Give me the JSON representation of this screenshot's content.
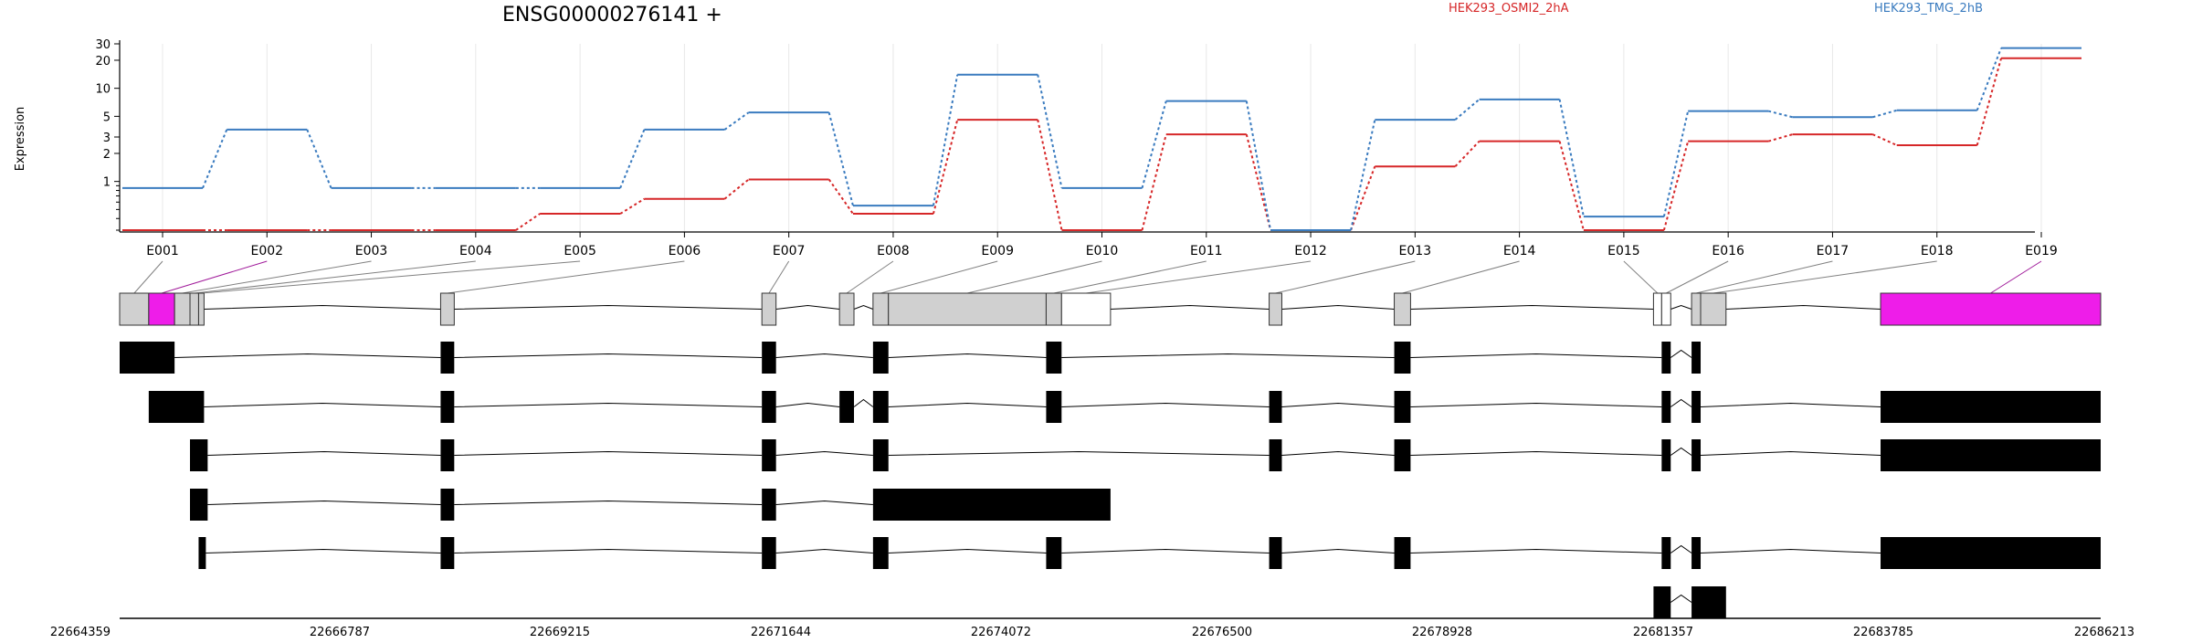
{
  "chart_data": [
    {
      "type": "line",
      "title": "ENSG00000276141 +",
      "ylabel": "Expression",
      "y_scale": "log",
      "yticks": [
        1,
        2,
        3,
        5,
        10,
        20,
        30
      ],
      "ytick_labels": [
        "1",
        "2",
        "3",
        "5",
        "10",
        "20",
        "30"
      ],
      "categories": [
        "E001",
        "E002",
        "E003",
        "E004",
        "E005",
        "E006",
        "E007",
        "E008",
        "E009",
        "E010",
        "E011",
        "E012",
        "E013",
        "E014",
        "E015",
        "E016",
        "E017",
        "E018",
        "E019"
      ],
      "series": [
        {
          "name": "HEK293_OSMI2_2hA",
          "color": "#d62728",
          "values": [
            0.3,
            0.3,
            0.3,
            0.3,
            0.45,
            0.65,
            1.05,
            0.45,
            4.6,
            0.3,
            3.2,
            0.3,
            1.45,
            2.7,
            0.3,
            2.7,
            3.2,
            2.45,
            21
          ]
        },
        {
          "name": "HEK293_TMG_2hB",
          "color": "#3a7bbf",
          "values": [
            0.85,
            3.6,
            0.85,
            0.85,
            0.85,
            3.6,
            5.5,
            0.55,
            14,
            0.85,
            7.3,
            0.3,
            4.6,
            7.6,
            0.42,
            5.7,
            4.9,
            5.8,
            27
          ]
        }
      ],
      "legend_placement": "top",
      "grid": "vertical"
    },
    {
      "type": "gene-structure",
      "axis_ticks": [
        "22664359",
        "22666787",
        "22669215",
        "22671644",
        "22674072",
        "22676500",
        "22678928",
        "22681357",
        "22683785",
        "22686213"
      ],
      "axis_range": [
        22664359,
        22686213
      ],
      "colors": {
        "exon_fill": "#d0d0d0",
        "highlight": "#ee1de9",
        "transcript": "#000000",
        "connector": "#808080"
      },
      "exon_bins": [
        {
          "id": "E001",
          "start": 22664359,
          "end": 22664680,
          "fill": "gray"
        },
        {
          "id": "E002",
          "start": 22664680,
          "end": 22664965,
          "fill": "magenta"
        },
        {
          "id": "E003",
          "start": 22664965,
          "end": 22665135,
          "fill": "gray"
        },
        {
          "id": "E004",
          "start": 22665135,
          "end": 22665230,
          "fill": "gray"
        },
        {
          "id": "E005",
          "start": 22665230,
          "end": 22665290,
          "fill": "gray"
        },
        {
          "id": "E006",
          "start": 22667900,
          "end": 22668050,
          "fill": "gray"
        },
        {
          "id": "E007",
          "start": 22671444,
          "end": 22671600,
          "fill": "gray"
        },
        {
          "id": "E008",
          "start": 22672300,
          "end": 22672460,
          "fill": "gray"
        },
        {
          "id": "E009",
          "start": 22672670,
          "end": 22672840,
          "fill": "gray"
        },
        {
          "id": "E010",
          "start": 22672840,
          "end": 22674580,
          "fill": "gray"
        },
        {
          "id": "E011",
          "start": 22674580,
          "end": 22674750,
          "fill": "gray"
        },
        {
          "id": "E012",
          "start": 22674750,
          "end": 22675290,
          "fill": "white"
        },
        {
          "id": "E013",
          "start": 22677040,
          "end": 22677180,
          "fill": "gray"
        },
        {
          "id": "E014",
          "start": 22678420,
          "end": 22678600,
          "fill": "gray"
        },
        {
          "id": "E015",
          "start": 22681280,
          "end": 22681370,
          "fill": "white"
        },
        {
          "id": "E016",
          "start": 22681370,
          "end": 22681470,
          "fill": "white"
        },
        {
          "id": "E017",
          "start": 22681700,
          "end": 22681800,
          "fill": "gray"
        },
        {
          "id": "E018",
          "start": 22681800,
          "end": 22682080,
          "fill": "gray"
        },
        {
          "id": "E019",
          "start": 22683785,
          "end": 22686213,
          "fill": "magenta"
        }
      ],
      "transcripts": [
        [
          [
            22664359,
            22664965
          ],
          [
            22667900,
            22668050
          ],
          [
            22671444,
            22671600
          ],
          [
            22672670,
            22672840
          ],
          [
            22674580,
            22674750
          ],
          [
            22678420,
            22678600
          ],
          [
            22681370,
            22681470
          ],
          [
            22681700,
            22681800
          ]
        ],
        [
          [
            22664680,
            22665290
          ],
          [
            22667900,
            22668050
          ],
          [
            22671444,
            22671600
          ],
          [
            22672300,
            22672460
          ],
          [
            22672670,
            22672840
          ],
          [
            22674580,
            22674750
          ],
          [
            22677040,
            22677180
          ],
          [
            22678420,
            22678600
          ],
          [
            22681370,
            22681470
          ],
          [
            22681700,
            22681800
          ],
          [
            22683785,
            22686213
          ]
        ],
        [
          [
            22665135,
            22665330
          ],
          [
            22667900,
            22668050
          ],
          [
            22671444,
            22671600
          ],
          [
            22672670,
            22672840
          ],
          [
            22677040,
            22677180
          ],
          [
            22678420,
            22678600
          ],
          [
            22681370,
            22681470
          ],
          [
            22681700,
            22681800
          ],
          [
            22683785,
            22686213
          ]
        ],
        [
          [
            22665135,
            22665330
          ],
          [
            22667900,
            22668050
          ],
          [
            22671444,
            22671600
          ],
          [
            22672670,
            22675290
          ]
        ],
        [
          [
            22665230,
            22665310
          ],
          [
            22667900,
            22668050
          ],
          [
            22671444,
            22671600
          ],
          [
            22672670,
            22672840
          ],
          [
            22674580,
            22674750
          ],
          [
            22677040,
            22677180
          ],
          [
            22678420,
            22678600
          ],
          [
            22681370,
            22681470
          ],
          [
            22681700,
            22681800
          ],
          [
            22683785,
            22686213
          ]
        ],
        [
          [
            22681280,
            22681470
          ],
          [
            22681700,
            22682080
          ]
        ]
      ]
    }
  ]
}
